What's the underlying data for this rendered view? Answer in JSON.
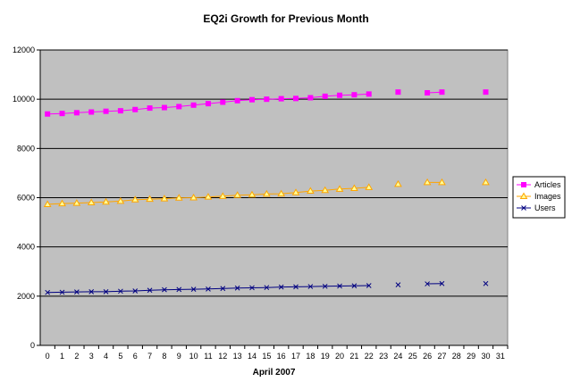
{
  "chart_data": {
    "type": "line",
    "title": "EQ2i Growth for Previous Month",
    "xlabel": "April 2007",
    "ylabel": "",
    "xlim": [
      0,
      31
    ],
    "ylim": [
      0,
      12000
    ],
    "x_ticks": [
      0,
      1,
      2,
      3,
      4,
      5,
      6,
      7,
      8,
      9,
      10,
      11,
      12,
      13,
      14,
      15,
      16,
      17,
      18,
      19,
      20,
      21,
      22,
      23,
      24,
      25,
      26,
      27,
      28,
      29,
      30,
      31
    ],
    "y_ticks": [
      0,
      2000,
      4000,
      6000,
      8000,
      10000,
      12000
    ],
    "grid": "horizontal",
    "legend_position": "right",
    "plot_background": "#c0c0c0",
    "series": [
      {
        "name": "Articles",
        "color": "#ff00ff",
        "marker": "square",
        "points": [
          [
            0,
            9400
          ],
          [
            1,
            9420
          ],
          [
            2,
            9450
          ],
          [
            3,
            9480
          ],
          [
            4,
            9510
          ],
          [
            5,
            9530
          ],
          [
            6,
            9580
          ],
          [
            7,
            9640
          ],
          [
            8,
            9660
          ],
          [
            9,
            9700
          ],
          [
            10,
            9760
          ],
          [
            11,
            9820
          ],
          [
            12,
            9880
          ],
          [
            13,
            9940
          ],
          [
            14,
            9980
          ],
          [
            15,
            10000
          ],
          [
            16,
            10020
          ],
          [
            17,
            10030
          ],
          [
            18,
            10060
          ],
          [
            19,
            10120
          ],
          [
            20,
            10160
          ],
          [
            21,
            10180
          ],
          [
            22,
            10210
          ],
          [
            24,
            10290
          ],
          [
            26,
            10260
          ],
          [
            27,
            10290
          ],
          [
            30,
            10290
          ]
        ]
      },
      {
        "name": "Images",
        "color": "#ffa500",
        "marker": "triangle",
        "points": [
          [
            0,
            5730
          ],
          [
            1,
            5760
          ],
          [
            2,
            5780
          ],
          [
            3,
            5800
          ],
          [
            4,
            5830
          ],
          [
            5,
            5860
          ],
          [
            6,
            5920
          ],
          [
            7,
            5940
          ],
          [
            8,
            5960
          ],
          [
            9,
            5990
          ],
          [
            10,
            6000
          ],
          [
            11,
            6030
          ],
          [
            12,
            6060
          ],
          [
            13,
            6100
          ],
          [
            14,
            6120
          ],
          [
            15,
            6150
          ],
          [
            16,
            6160
          ],
          [
            17,
            6210
          ],
          [
            18,
            6270
          ],
          [
            19,
            6300
          ],
          [
            20,
            6350
          ],
          [
            21,
            6380
          ],
          [
            22,
            6420
          ],
          [
            24,
            6550
          ],
          [
            26,
            6620
          ],
          [
            27,
            6620
          ],
          [
            30,
            6620
          ]
        ]
      },
      {
        "name": "Users",
        "color": "#000080",
        "marker": "x",
        "points": [
          [
            0,
            2150
          ],
          [
            1,
            2160
          ],
          [
            2,
            2170
          ],
          [
            3,
            2180
          ],
          [
            4,
            2180
          ],
          [
            5,
            2200
          ],
          [
            6,
            2210
          ],
          [
            7,
            2240
          ],
          [
            8,
            2260
          ],
          [
            9,
            2270
          ],
          [
            10,
            2280
          ],
          [
            11,
            2290
          ],
          [
            12,
            2310
          ],
          [
            13,
            2330
          ],
          [
            14,
            2340
          ],
          [
            15,
            2350
          ],
          [
            16,
            2370
          ],
          [
            17,
            2380
          ],
          [
            18,
            2390
          ],
          [
            19,
            2400
          ],
          [
            20,
            2410
          ],
          [
            21,
            2420
          ],
          [
            22,
            2430
          ],
          [
            24,
            2460
          ],
          [
            26,
            2500
          ],
          [
            27,
            2510
          ],
          [
            30,
            2510
          ]
        ]
      }
    ]
  }
}
